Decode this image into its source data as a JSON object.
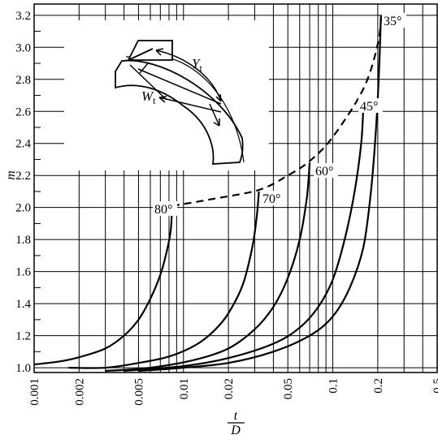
{
  "chart_data": {
    "type": "line",
    "x_scale": "log",
    "xlim": [
      0.001,
      0.5
    ],
    "ylim": [
      0.97,
      3.27
    ],
    "grid": true,
    "xlabel_numerator": "t",
    "xlabel_denominator": "D",
    "ylabel": "m",
    "x_tick_labels": [
      {
        "value": 0.001,
        "label": "0.001"
      },
      {
        "value": 0.002,
        "label": "0.002"
      },
      {
        "value": 0.005,
        "label": "0.005"
      },
      {
        "value": 0.01,
        "label": "0.01"
      },
      {
        "value": 0.02,
        "label": "0.02"
      },
      {
        "value": 0.05,
        "label": "0.05"
      },
      {
        "value": 0.1,
        "label": "0.1"
      },
      {
        "value": 0.2,
        "label": "0.2"
      },
      {
        "value": 0.5,
        "label": "0.5"
      }
    ],
    "x_minor_gridlines": [
      0.003,
      0.004,
      0.006,
      0.007,
      0.008,
      0.009,
      0.03,
      0.04,
      0.06,
      0.07,
      0.08,
      0.09,
      0.3,
      0.4
    ],
    "y_tick_labels": [
      {
        "value": 1.0,
        "label": "1.0"
      },
      {
        "value": 1.2,
        "label": "1.2"
      },
      {
        "value": 1.4,
        "label": "1.4"
      },
      {
        "value": 1.6,
        "label": "1.6"
      },
      {
        "value": 1.8,
        "label": "1.8"
      },
      {
        "value": 2.0,
        "label": "2.0"
      },
      {
        "value": 2.2,
        "label": "2.2"
      },
      {
        "value": 2.4,
        "label": "2.4"
      },
      {
        "value": 2.6,
        "label": "2.6"
      },
      {
        "value": 2.8,
        "label": "2.8"
      },
      {
        "value": 3.0,
        "label": "3.0"
      },
      {
        "value": 3.2,
        "label": "3.2"
      }
    ],
    "y_minor_gridlines": [
      1.1,
      1.3,
      1.5,
      1.7,
      1.9,
      2.1,
      2.3,
      2.5,
      2.7,
      2.9,
      3.1
    ],
    "series": [
      {
        "label": "80°",
        "points": [
          [
            0.001,
            1.02
          ],
          [
            0.0015,
            1.04
          ],
          [
            0.002,
            1.065
          ],
          [
            0.003,
            1.12
          ],
          [
            0.004,
            1.2
          ],
          [
            0.005,
            1.3
          ],
          [
            0.006,
            1.43
          ],
          [
            0.007,
            1.58
          ],
          [
            0.0077,
            1.72
          ],
          [
            0.0082,
            1.85
          ],
          [
            0.0084,
            2.0
          ]
        ]
      },
      {
        "label": "70°",
        "points": [
          [
            0.0017,
            1.0
          ],
          [
            0.003,
            1.0
          ],
          [
            0.005,
            1.03
          ],
          [
            0.008,
            1.07
          ],
          [
            0.012,
            1.14
          ],
          [
            0.016,
            1.23
          ],
          [
            0.02,
            1.34
          ],
          [
            0.025,
            1.52
          ],
          [
            0.029,
            1.76
          ],
          [
            0.031,
            1.95
          ],
          [
            0.032,
            2.1
          ]
        ]
      },
      {
        "label": "60°",
        "points": [
          [
            0.003,
            0.98
          ],
          [
            0.006,
            1.0
          ],
          [
            0.012,
            1.05
          ],
          [
            0.02,
            1.12
          ],
          [
            0.03,
            1.24
          ],
          [
            0.04,
            1.38
          ],
          [
            0.05,
            1.56
          ],
          [
            0.06,
            1.8
          ],
          [
            0.067,
            2.06
          ],
          [
            0.07,
            2.28
          ]
        ]
      },
      {
        "label": "45°",
        "points": [
          [
            0.004,
            0.98
          ],
          [
            0.01,
            1.01
          ],
          [
            0.02,
            1.06
          ],
          [
            0.04,
            1.15
          ],
          [
            0.06,
            1.25
          ],
          [
            0.08,
            1.38
          ],
          [
            0.1,
            1.55
          ],
          [
            0.12,
            1.8
          ],
          [
            0.14,
            2.1
          ],
          [
            0.155,
            2.4
          ],
          [
            0.16,
            2.62
          ]
        ]
      },
      {
        "label": "35°",
        "points": [
          [
            0.005,
            0.98
          ],
          [
            0.01,
            1.0
          ],
          [
            0.02,
            1.03
          ],
          [
            0.04,
            1.1
          ],
          [
            0.07,
            1.2
          ],
          [
            0.1,
            1.32
          ],
          [
            0.13,
            1.5
          ],
          [
            0.16,
            1.75
          ],
          [
            0.18,
            2.1
          ],
          [
            0.195,
            2.5
          ],
          [
            0.205,
            2.9
          ],
          [
            0.21,
            3.2
          ]
        ]
      }
    ],
    "envelope": {
      "style": "dashed",
      "points": [
        [
          0.0084,
          2.01
        ],
        [
          0.015,
          2.05
        ],
        [
          0.032,
          2.11
        ],
        [
          0.05,
          2.2
        ],
        [
          0.07,
          2.29
        ],
        [
          0.1,
          2.44
        ],
        [
          0.16,
          2.74
        ],
        [
          0.2,
          3.02
        ],
        [
          0.212,
          3.22
        ]
      ]
    }
  },
  "inset": {
    "label_yt": "Y",
    "label_yt_sub": "t",
    "label_wt": "W",
    "label_wt_sub": "t"
  }
}
